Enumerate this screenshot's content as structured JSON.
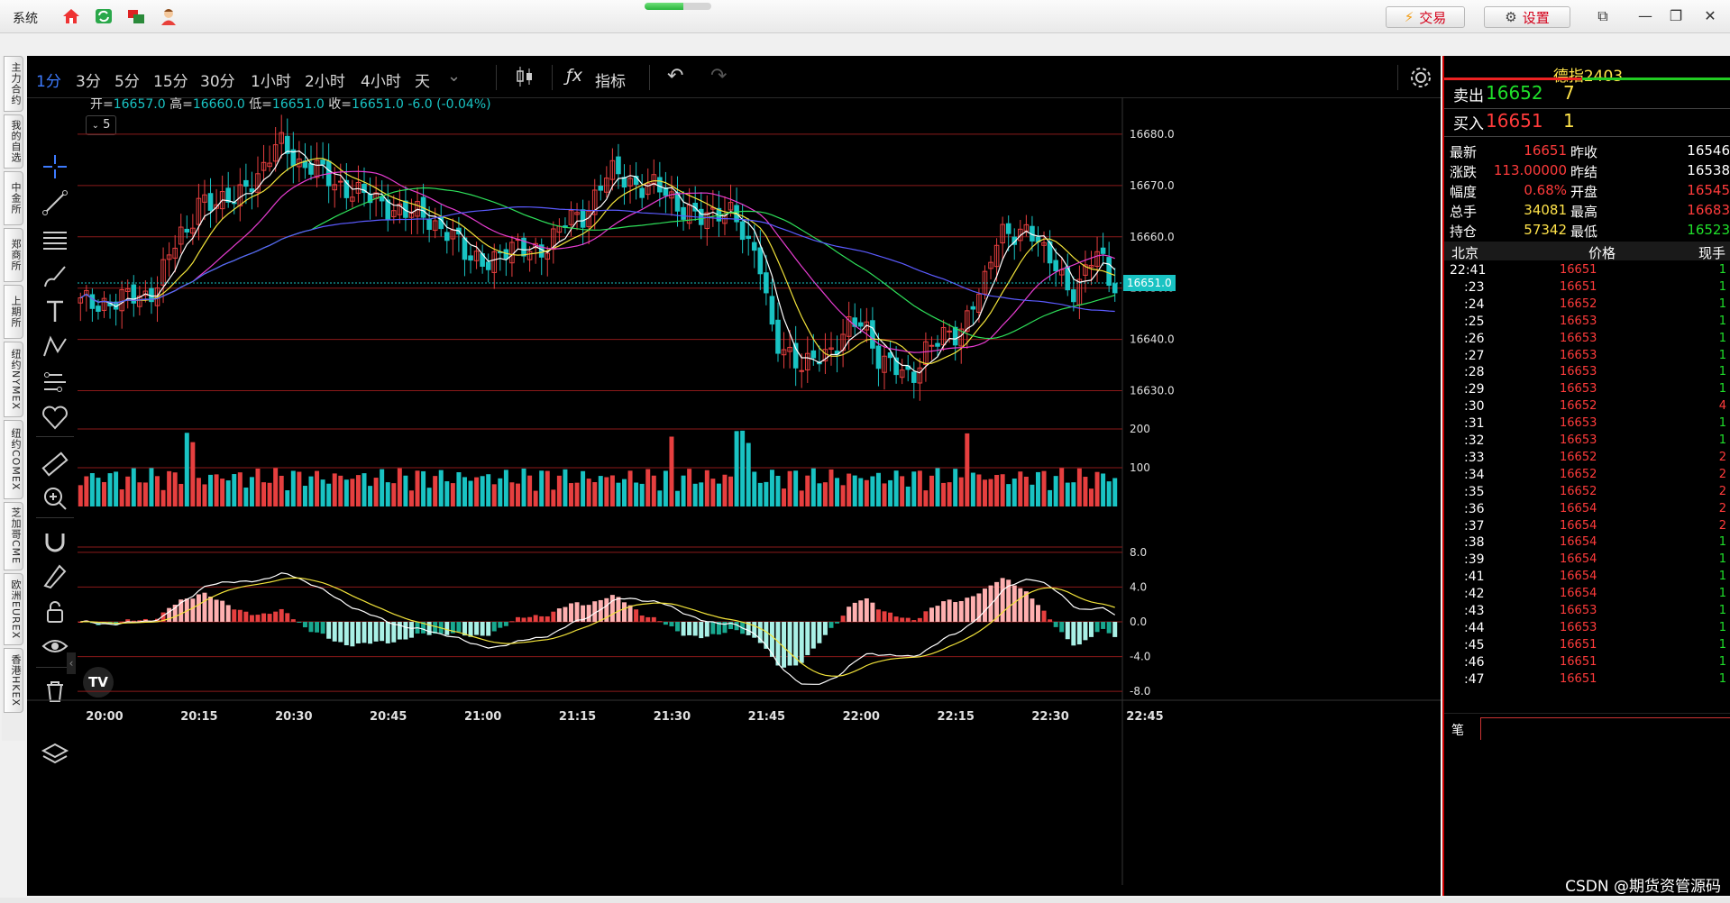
{
  "titlebar": {
    "menu": "系统",
    "trade_label": "交易",
    "settings_label": "设置",
    "progress": 0.58
  },
  "left_tabs": [
    "主力合约",
    "我的自选",
    "中金所",
    "郑商所",
    "上期所",
    "纽约NYMEX",
    "纽约COMEX",
    "芝加哥CME",
    "欧洲EUREX",
    "香港HKEX"
  ],
  "toolbar": {
    "timeframes": [
      "1分",
      "3分",
      "5分",
      "15分",
      "30分",
      "1小时",
      "2小时",
      "4小时",
      "天"
    ],
    "active_timeframe": "1分",
    "indicator_label": "指标"
  },
  "ohlc": {
    "open_label": "开=",
    "open": "16657.0",
    "high_label": "高=",
    "high": "16660.0",
    "low_label": "低=",
    "low": "16651.0",
    "close_label": "收=",
    "close": "16651.0",
    "change": "-6.0 (-0.04%)"
  },
  "legend_toggle": "5",
  "chart_data": {
    "type": "candlestick",
    "x_ticks": [
      "20:00",
      "20:15",
      "20:30",
      "20:45",
      "21:00",
      "21:15",
      "21:30",
      "21:45",
      "22:00",
      "22:15",
      "22:30",
      "22:45"
    ],
    "price_ticks": [
      "16680.0",
      "16670.0",
      "16660.0",
      "16650.0",
      "16640.0",
      "16630.0"
    ],
    "price_range": [
      16625,
      16690
    ],
    "last_price_label": "16651.0",
    "volume_ticks": [
      "200",
      "100"
    ],
    "macd_ticks": [
      "8.0",
      "4.0",
      "0.0",
      "-4.0",
      "-8.0"
    ],
    "macd_range": [
      -8.5,
      8.5
    ],
    "colors": {
      "up": "#e63f3f",
      "down": "#19c3c3",
      "ma5": "#ffffff",
      "ma10": "#f2e33a",
      "ma20": "#e83dd2",
      "ma40": "#2ee05a",
      "ma60": "#5b5bff"
    }
  },
  "right_panel": {
    "symbol": "德指2403",
    "ask_label": "卖出",
    "ask_price": "16652",
    "ask_qty": "7",
    "bid_label": "买入",
    "bid_price": "16651",
    "bid_qty": "1",
    "stats": [
      {
        "label": "最新",
        "value": "16651",
        "label2": "昨收",
        "value2": "16546"
      },
      {
        "label": "涨跌",
        "value": "113.00000",
        "label2": "昨结",
        "value2": "16538"
      },
      {
        "label": "幅度",
        "value": "0.68%",
        "label2": "开盘",
        "value2": "16545"
      },
      {
        "label": "总手",
        "value": "34081",
        "label2": "最高",
        "value2": "16683"
      },
      {
        "label": "持仓",
        "value": "57342",
        "label2": "最低",
        "value2": "16523"
      }
    ],
    "tick_header": {
      "time": "北京",
      "price": "价格",
      "qty": "现手"
    },
    "ticks": [
      {
        "t": "22:41",
        "p": "16651",
        "q": "1"
      },
      {
        "t": ":23",
        "p": "16651",
        "q": "1"
      },
      {
        "t": ":24",
        "p": "16652",
        "q": "1"
      },
      {
        "t": ":25",
        "p": "16653",
        "q": "1"
      },
      {
        "t": ":26",
        "p": "16653",
        "q": "1"
      },
      {
        "t": ":27",
        "p": "16653",
        "q": "1"
      },
      {
        "t": ":28",
        "p": "16653",
        "q": "1"
      },
      {
        "t": ":29",
        "p": "16653",
        "q": "1"
      },
      {
        "t": ":30",
        "p": "16652",
        "q": "4"
      },
      {
        "t": ":31",
        "p": "16653",
        "q": "1"
      },
      {
        "t": ":32",
        "p": "16653",
        "q": "1"
      },
      {
        "t": ":33",
        "p": "16652",
        "q": "2"
      },
      {
        "t": ":34",
        "p": "16652",
        "q": "2"
      },
      {
        "t": ":35",
        "p": "16652",
        "q": "2"
      },
      {
        "t": ":36",
        "p": "16654",
        "q": "2"
      },
      {
        "t": ":37",
        "p": "16654",
        "q": "2"
      },
      {
        "t": ":38",
        "p": "16654",
        "q": "1"
      },
      {
        "t": ":39",
        "p": "16654",
        "q": "1"
      },
      {
        "t": ":41",
        "p": "16654",
        "q": "1"
      },
      {
        "t": ":42",
        "p": "16654",
        "q": "1"
      },
      {
        "t": ":43",
        "p": "16653",
        "q": "1"
      },
      {
        "t": ":44",
        "p": "16653",
        "q": "1"
      },
      {
        "t": ":45",
        "p": "16651",
        "q": "1"
      },
      {
        "t": ":46",
        "p": "16651",
        "q": "1"
      },
      {
        "t": ":47",
        "p": "16651",
        "q": "1"
      }
    ],
    "footer_tab": "笔"
  },
  "watermark": "CSDN @期货资管源码"
}
